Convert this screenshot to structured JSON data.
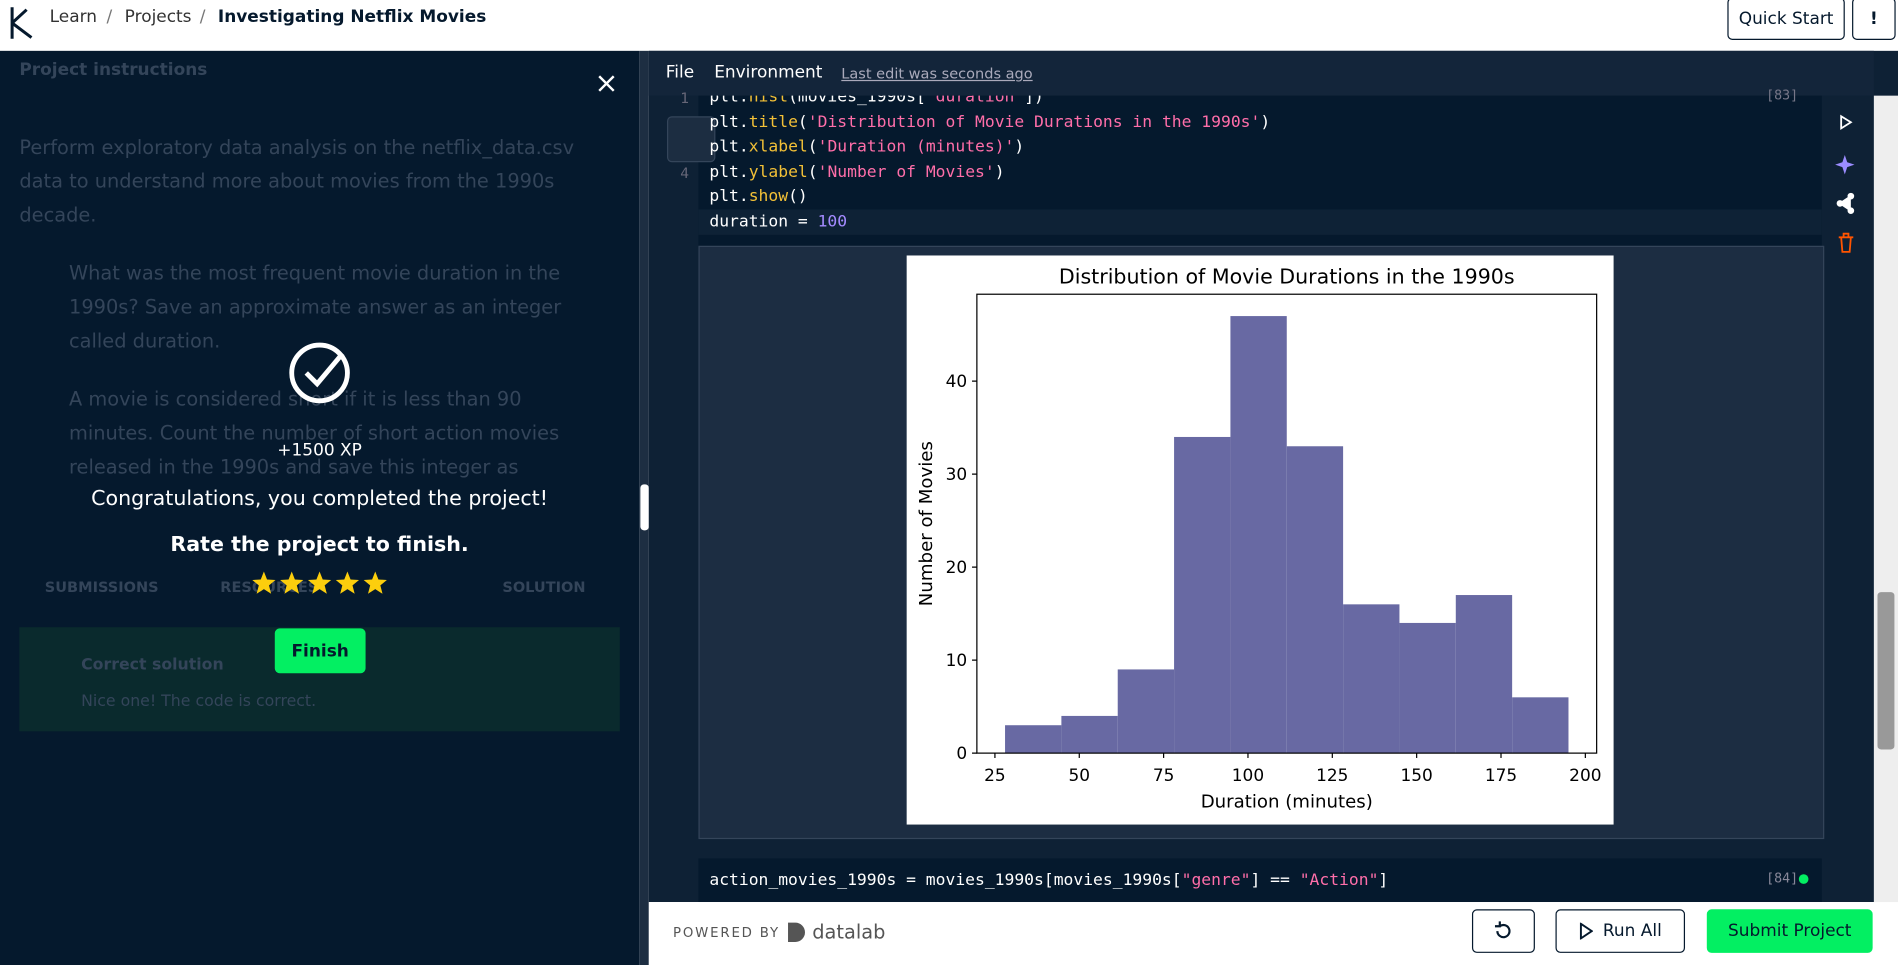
{
  "header": {
    "breadcrumbs": [
      "Learn",
      "Projects",
      "Investigating Netflix Movies"
    ],
    "quick_start": "Quick Start"
  },
  "instructions": {
    "title": "Project instructions",
    "intro": "Perform exploratory data analysis on the netflix_data.csv data to understand more about movies from the 1990s decade.",
    "bullets": [
      "What was the most frequent movie duration in the 1990s? Save an approximate answer as an integer called duration.",
      "A movie is considered short if it is less than 90 minutes. Count the number of short action movies released in the 1990s and save this integer as short_movie_count."
    ],
    "tabs": [
      "SUBMISSIONS",
      "RESOURCES",
      "SOLUTION"
    ],
    "result_title": "Correct solution",
    "result_text": "Nice one! The code is correct."
  },
  "modal": {
    "xp": "+1500 XP",
    "message": "Congratulations, you completed the project!",
    "prompt": "Rate the project to finish.",
    "button": "Finish"
  },
  "notebook": {
    "menu": [
      "File",
      "Environment"
    ],
    "last_edit": "Last edit was seconds ago",
    "line_numbers": [
      "1",
      "4"
    ],
    "cells": [
      {
        "exec": "[83]",
        "lines": [
          [
            "plt.",
            "hist",
            "(movies_1990s[",
            "'duration'",
            "])"
          ],
          [
            "plt.",
            "title",
            "(",
            "'Distribution of Movie Durations in the 1990s'",
            ")"
          ],
          [
            "plt.",
            "xlabel",
            "(",
            "'Duration (minutes)'",
            ")"
          ],
          [
            "plt.",
            "ylabel",
            "(",
            "'Number of Movies'",
            ")"
          ],
          [
            "plt.",
            "show",
            "()"
          ],
          [
            "duration = ",
            "100"
          ]
        ]
      },
      {
        "exec": "[84]",
        "lines": [
          [
            "action_movies_1990s = movies_1990s[movies_1990s[",
            "\"genre\"",
            "] == ",
            "\"Action\"",
            "]"
          ]
        ]
      }
    ]
  },
  "footer": {
    "powered_by": "POWERED BY",
    "brand": "datalab",
    "run_all": "Run All",
    "submit": "Submit Project"
  },
  "chart_data": {
    "type": "histogram",
    "title": "Distribution of Movie Durations in the 1990s",
    "x_label": "Duration (minutes)",
    "y_label": "Number of Movies",
    "bins": [
      28,
      44.7,
      61.4,
      78.1,
      94.8,
      111.5,
      128.2,
      144.9,
      161.6,
      178.3,
      195
    ],
    "values": [
      3,
      4,
      9,
      34,
      47,
      33,
      16,
      14,
      17,
      6
    ],
    "color": "#6869a3",
    "xlim": [
      19.65,
      203.35
    ],
    "ylim": [
      0,
      49.35
    ],
    "xticks": [
      25,
      50,
      75,
      100,
      125,
      150,
      175,
      200
    ],
    "yticks": [
      0,
      10,
      20,
      30,
      40
    ]
  }
}
